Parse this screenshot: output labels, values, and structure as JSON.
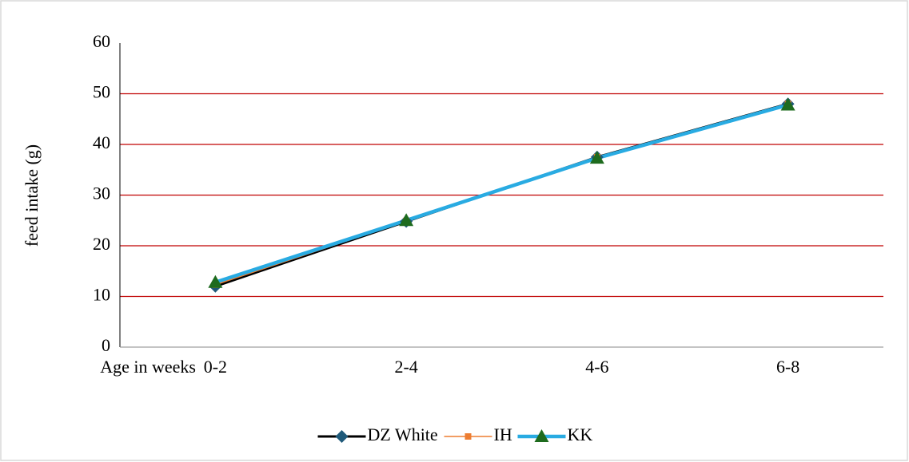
{
  "chart_data": {
    "type": "line",
    "y_label": "feed intake (g)",
    "x_label": "Age in weeks",
    "categories": [
      "0-2",
      "2-4",
      "4-6",
      "6-8"
    ],
    "series": [
      {
        "name": "DZ White",
        "color": "#000000",
        "marker": "diamond",
        "marker_color": "#1f5a7a",
        "line_width": 3,
        "values": [
          12,
          24.8,
          37.5,
          48
        ]
      },
      {
        "name": "IH",
        "color": "#ed7d31",
        "marker": "square",
        "marker_color": "#ed7d31",
        "line_width": 1.5,
        "values": [
          12.3,
          24.9,
          37.5,
          48
        ]
      },
      {
        "name": "KK",
        "color": "#29abe2",
        "marker": "triangle",
        "marker_color": "#1e6b1e",
        "line_width": 4.5,
        "values": [
          12.8,
          25,
          37.3,
          47.8
        ]
      }
    ],
    "ylim": [
      0,
      60
    ],
    "yticks": [
      0,
      10,
      20,
      30,
      40,
      50,
      60
    ],
    "grid": true,
    "grid_color": "#c00000",
    "legend": "bottom"
  }
}
